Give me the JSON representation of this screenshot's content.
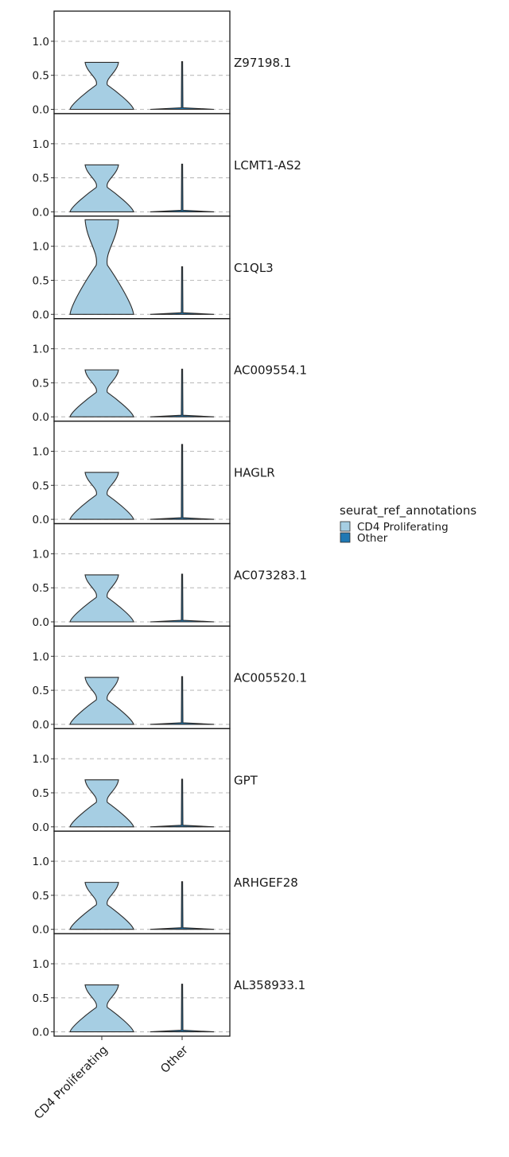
{
  "chart_data": {
    "type": "violin",
    "categories": [
      "CD4 Proliferating",
      "Other"
    ],
    "y_ticks": [
      0.0,
      0.5,
      1.0
    ],
    "y_tick_labels": [
      "0.0",
      "0.5",
      "1.0"
    ],
    "ylim": [
      -0.02,
      1.45
    ],
    "grid": "horizontal dashed",
    "legend": {
      "title": "seurat_ref_annotations",
      "placement": "right",
      "entries": [
        {
          "label": "CD4 Proliferating",
          "color": "#a6cee3"
        },
        {
          "label": "Other",
          "color": "#1f78b4"
        }
      ]
    },
    "panels": [
      {
        "gene": "Z97198.1",
        "cd4_max": 0.69,
        "other_max": 0.7
      },
      {
        "gene": "LCMT1-AS2",
        "cd4_max": 0.69,
        "other_max": 0.7
      },
      {
        "gene": "C1QL3",
        "cd4_max": 1.39,
        "other_max": 0.7
      },
      {
        "gene": "AC009554.1",
        "cd4_max": 0.69,
        "other_max": 0.7
      },
      {
        "gene": "HAGLR",
        "cd4_max": 0.69,
        "other_max": 1.1
      },
      {
        "gene": "AC073283.1",
        "cd4_max": 0.69,
        "other_max": 0.7
      },
      {
        "gene": "AC005520.1",
        "cd4_max": 0.69,
        "other_max": 0.7
      },
      {
        "gene": "GPT",
        "cd4_max": 0.69,
        "other_max": 0.7
      },
      {
        "gene": "ARHGEF28",
        "cd4_max": 0.69,
        "other_max": 0.7
      },
      {
        "gene": "AL358933.1",
        "cd4_max": 0.69,
        "other_max": 0.7
      }
    ]
  },
  "colors": {
    "cd4_fill": "#a6cee3",
    "other_fill": "#1f78b4",
    "outline": "#2a2a2a",
    "grid": "#bdbdbd"
  }
}
